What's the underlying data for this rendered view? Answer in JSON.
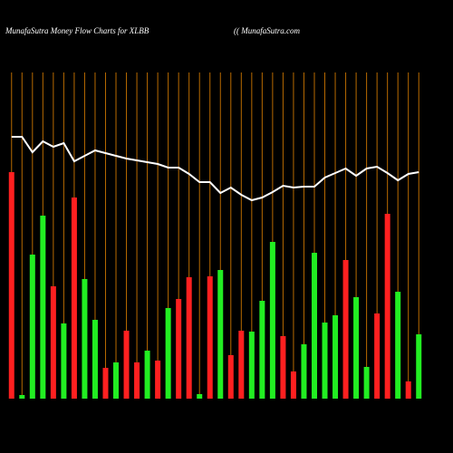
{
  "chart_data": {
    "type": "bar",
    "title": "MunafaSutra  Money Flow  Charts for XLBB",
    "subtitle": "(( MunafaSutra.com",
    "values": [
      250,
      4,
      159,
      202,
      124,
      83,
      222,
      132,
      87,
      34,
      40,
      75,
      40,
      53,
      42,
      100,
      110,
      134,
      5,
      135,
      142,
      48,
      75,
      74,
      108,
      173,
      69,
      30,
      60,
      161,
      84,
      92,
      153,
      112,
      35,
      94,
      204,
      118,
      19,
      71
    ],
    "bar_colors": [
      "#ff2020",
      "#22ee22",
      "#22ee22",
      "#22ee22",
      "#ff2020",
      "#22ee22",
      "#ff2020",
      "#22ee22",
      "#22ee22",
      "#ff2020",
      "#22ee22",
      "#ff2020",
      "#ff2020",
      "#22ee22",
      "#ff2020",
      "#22ee22",
      "#ff2020",
      "#ff2020",
      "#22ee22",
      "#ff2020",
      "#22ee22",
      "#ff2020",
      "#ff2020",
      "#22ee22",
      "#22ee22",
      "#22ee22",
      "#ff2020",
      "#ff2020",
      "#22ee22",
      "#22ee22",
      "#22ee22",
      "#22ee22",
      "#ff2020",
      "#22ee22",
      "#22ee22",
      "#ff2020",
      "#ff2020",
      "#22ee22",
      "#ff2020",
      "#22ee22"
    ],
    "line": {
      "color": "#ffffff",
      "values": [
        289,
        289,
        272,
        284,
        278,
        282,
        262,
        268,
        274,
        271,
        268,
        265,
        263,
        261,
        259,
        255,
        255,
        248,
        239,
        239,
        227,
        233,
        225,
        219,
        222,
        228,
        235,
        233,
        234,
        234,
        244,
        249,
        254,
        246,
        254,
        256,
        249,
        241,
        248,
        250
      ]
    },
    "ylim": [
      0,
      300
    ],
    "grid": true,
    "grid_color": "#b86a00"
  }
}
